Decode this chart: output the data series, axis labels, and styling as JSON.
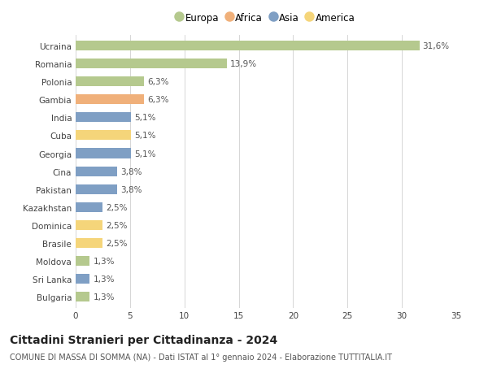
{
  "countries": [
    "Ucraina",
    "Romania",
    "Polonia",
    "Gambia",
    "India",
    "Cuba",
    "Georgia",
    "Cina",
    "Pakistan",
    "Kazakhstan",
    "Dominica",
    "Brasile",
    "Moldova",
    "Sri Lanka",
    "Bulgaria"
  ],
  "values": [
    31.6,
    13.9,
    6.3,
    6.3,
    5.1,
    5.1,
    5.1,
    3.8,
    3.8,
    2.5,
    2.5,
    2.5,
    1.3,
    1.3,
    1.3
  ],
  "labels": [
    "31,6%",
    "13,9%",
    "6,3%",
    "6,3%",
    "5,1%",
    "5,1%",
    "5,1%",
    "3,8%",
    "3,8%",
    "2,5%",
    "2,5%",
    "2,5%",
    "1,3%",
    "1,3%",
    "1,3%"
  ],
  "continents": [
    "Europa",
    "Europa",
    "Europa",
    "Africa",
    "Asia",
    "America",
    "Asia",
    "Asia",
    "Asia",
    "Asia",
    "America",
    "America",
    "Europa",
    "Asia",
    "Europa"
  ],
  "continent_colors": {
    "Europa": "#b5c98e",
    "Africa": "#f0b07a",
    "Asia": "#7f9fc4",
    "America": "#f5d57a"
  },
  "legend_order": [
    "Europa",
    "Africa",
    "Asia",
    "America"
  ],
  "title": "Cittadini Stranieri per Cittadinanza - 2024",
  "subtitle": "COMUNE DI MASSA DI SOMMA (NA) - Dati ISTAT al 1° gennaio 2024 - Elaborazione TUTTITALIA.IT",
  "xlim": [
    0,
    35
  ],
  "xticks": [
    0,
    5,
    10,
    15,
    20,
    25,
    30,
    35
  ],
  "background_color": "#ffffff",
  "grid_color": "#d0d0d0",
  "bar_height": 0.55,
  "label_fontsize": 7.5,
  "tick_fontsize": 7.5,
  "title_fontsize": 10,
  "subtitle_fontsize": 7.0
}
